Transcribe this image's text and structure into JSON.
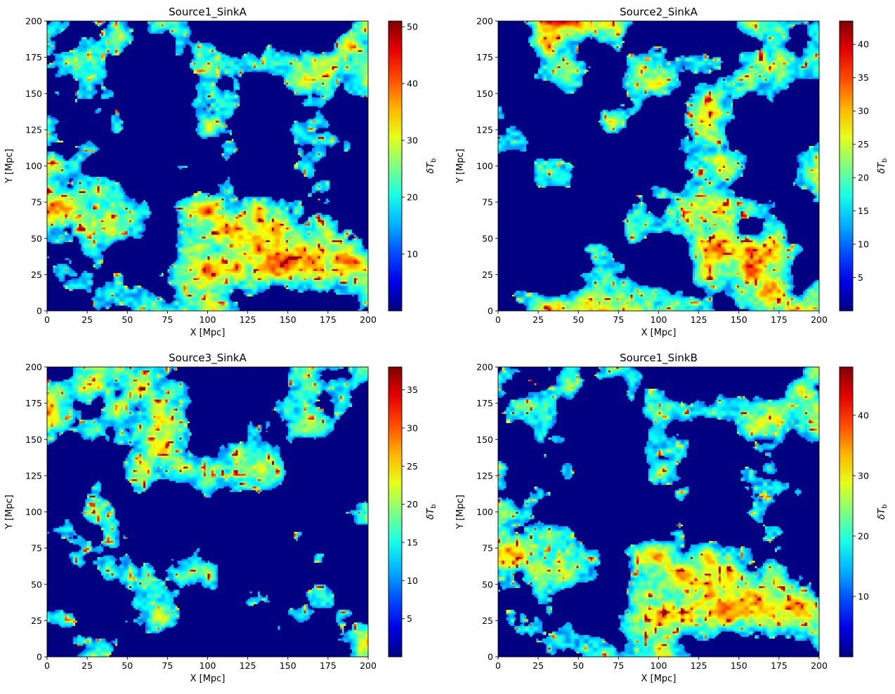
{
  "chart_data": [
    {
      "type": "heatmap",
      "title": "Source1_SinkA",
      "xlabel": "X [Mpc]",
      "ylabel": "Y [Mpc]",
      "xlim": [
        0,
        200
      ],
      "ylim": [
        0,
        200
      ],
      "x_ticks": [
        0,
        25,
        50,
        75,
        100,
        125,
        150,
        175,
        200
      ],
      "y_ticks": [
        0,
        25,
        50,
        75,
        100,
        125,
        150,
        175,
        200
      ],
      "colorbar": {
        "label": "δT_b",
        "range": [
          0,
          51
        ],
        "ticks": [
          10,
          20,
          30,
          40,
          50
        ]
      },
      "seed": 11
    },
    {
      "type": "heatmap",
      "title": "Source2_SinkA",
      "xlabel": "X [Mpc]",
      "ylabel": "Y [Mpc]",
      "xlim": [
        0,
        200
      ],
      "ylim": [
        0,
        200
      ],
      "x_ticks": [
        0,
        25,
        50,
        75,
        100,
        125,
        150,
        175,
        200
      ],
      "y_ticks": [
        0,
        25,
        50,
        75,
        100,
        125,
        150,
        175,
        200
      ],
      "colorbar": {
        "label": "δT_b",
        "range": [
          0,
          43.5
        ],
        "ticks": [
          5,
          10,
          15,
          20,
          25,
          30,
          35,
          40
        ]
      },
      "seed": 23
    },
    {
      "type": "heatmap",
      "title": "Source3_SinkA",
      "xlabel": "X [Mpc]",
      "ylabel": "Y [Mpc]",
      "xlim": [
        0,
        200
      ],
      "ylim": [
        0,
        200
      ],
      "x_ticks": [
        0,
        25,
        50,
        75,
        100,
        125,
        150,
        175,
        200
      ],
      "y_ticks": [
        0,
        25,
        50,
        75,
        100,
        125,
        150,
        175,
        200
      ],
      "colorbar": {
        "label": "δT_b",
        "range": [
          0,
          38
        ],
        "ticks": [
          5,
          10,
          15,
          20,
          25,
          30,
          35
        ]
      },
      "seed": 37
    },
    {
      "type": "heatmap",
      "title": "Source1_SinkB",
      "xlabel": "X [Mpc]",
      "ylabel": "Y [Mpc]",
      "xlim": [
        0,
        200
      ],
      "ylim": [
        0,
        200
      ],
      "x_ticks": [
        0,
        25,
        50,
        75,
        100,
        125,
        150,
        175,
        200
      ],
      "y_ticks": [
        0,
        25,
        50,
        75,
        100,
        125,
        150,
        175,
        200
      ],
      "colorbar": {
        "label": "δT_b",
        "range": [
          0,
          48
        ],
        "ticks": [
          10,
          20,
          30,
          40
        ]
      },
      "seed": 11
    }
  ],
  "colormap": "jet",
  "colors": {
    "background_field": "#00007f",
    "axis": "#000000"
  }
}
